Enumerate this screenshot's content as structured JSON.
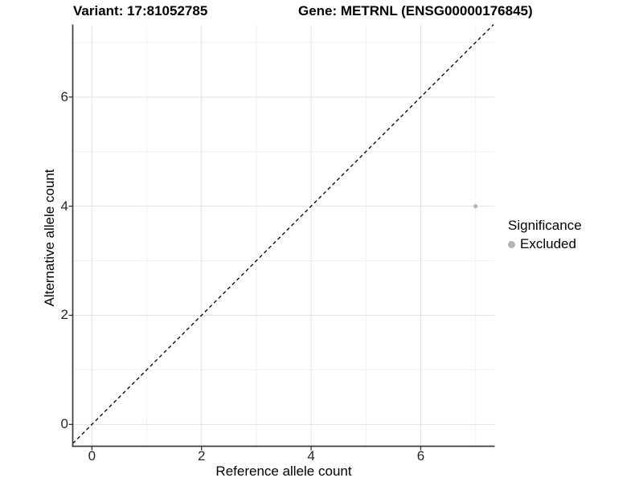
{
  "chart_data": {
    "type": "scatter",
    "titles": {
      "left": "Variant: 17:81052785",
      "right": "Gene: METRNL (ENSG00000176845)"
    },
    "xlabel": "Reference allele count",
    "ylabel": "Alternative allele count",
    "xlim": [
      -0.35,
      7.35
    ],
    "ylim": [
      -0.4,
      7.33
    ],
    "x_ticks": [
      0,
      2,
      4,
      6
    ],
    "y_ticks": [
      0,
      2,
      4,
      6
    ],
    "x_minor_gridlines": [
      1,
      3,
      5,
      7
    ],
    "y_minor_gridlines": [
      1,
      3,
      5,
      7
    ],
    "grid": "major and minor, light gray on white panel",
    "series": [
      {
        "name": "Excluded",
        "color": "#b4b4b4",
        "points": [
          {
            "x": 7,
            "y": 4
          }
        ]
      }
    ],
    "reference_line": {
      "type": "identity",
      "slope": 1,
      "intercept": 0,
      "style": "dashed",
      "color": "#000000"
    },
    "legend": {
      "title": "Significance",
      "position": "right",
      "items": [
        {
          "label": "Excluded",
          "color": "#b4b4b4"
        }
      ]
    },
    "colors": {
      "grid_major": "#e2e2e2",
      "grid_minor": "#f0f0f0",
      "axis_line": "#3c3c3c",
      "tick_mark": "#333333",
      "tick_text": "#262626",
      "point": "#b4b4b4"
    }
  }
}
